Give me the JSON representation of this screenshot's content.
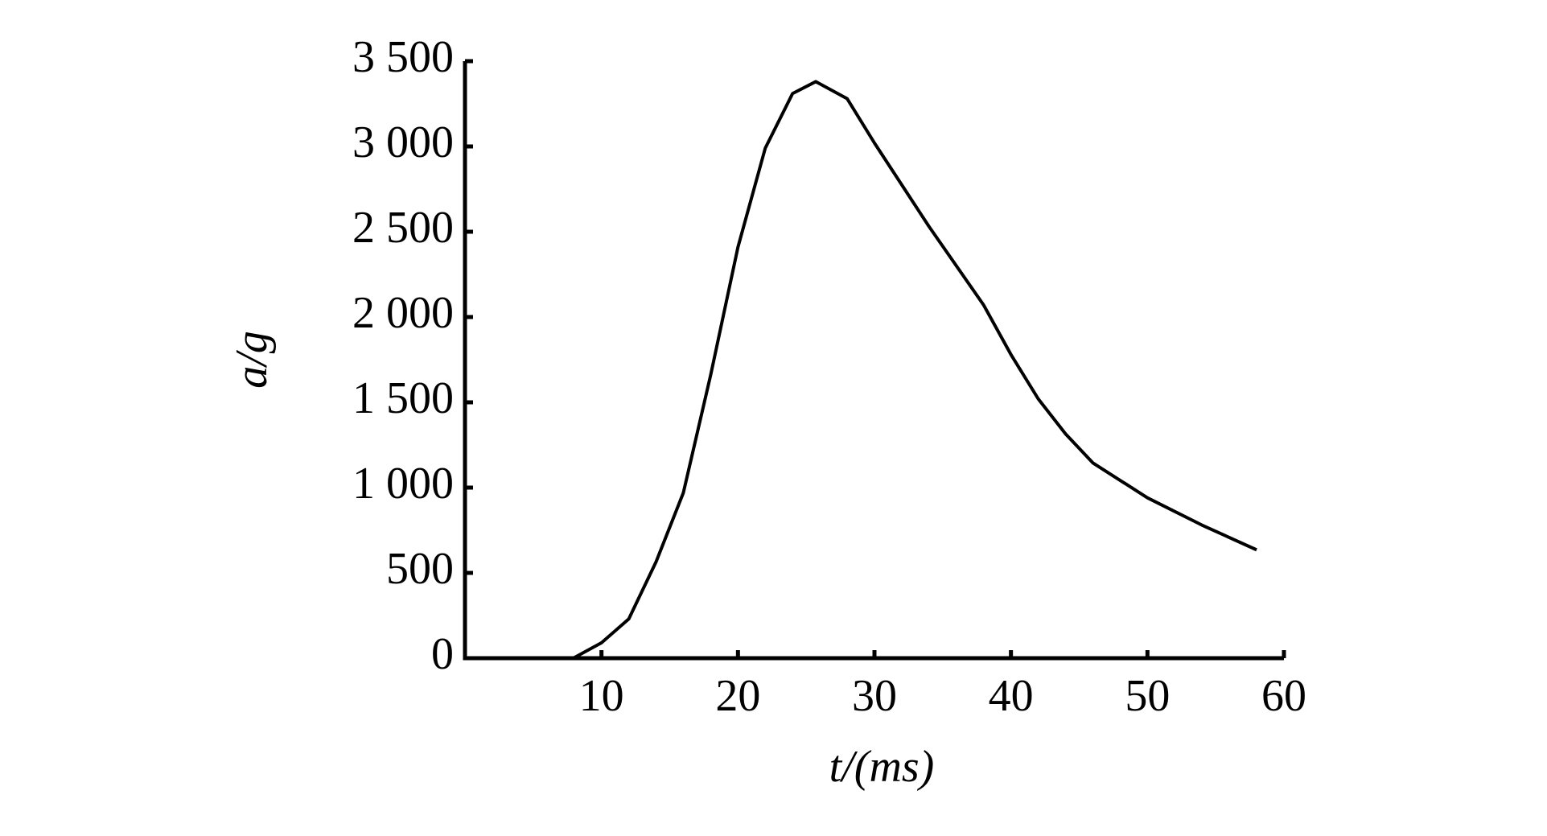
{
  "chart_data": {
    "type": "line",
    "x_label": "t/(ms)",
    "y_label": "a/g",
    "x": [
      0,
      5,
      7.5,
      8,
      10,
      12,
      14,
      16,
      18,
      20,
      22,
      24,
      25.7,
      28,
      30,
      34,
      38,
      40,
      42,
      44,
      46,
      50,
      54,
      58
    ],
    "series": [
      {
        "name": "a",
        "color": "#000000",
        "values": [
          0,
          0,
          0,
          3,
          90,
          230,
          565,
          970,
          1660,
          2410,
          2990,
          3310,
          3380,
          3280,
          3020,
          2530,
          2070,
          1780,
          1520,
          1315,
          1145,
          940,
          780,
          635
        ]
      }
    ],
    "xlim": [
      0,
      60
    ],
    "xticks": [
      10,
      20,
      30,
      40,
      50,
      60
    ],
    "ylim": [
      0,
      3500
    ],
    "yticks": [
      0,
      500,
      {
        "value": 1000,
        "label": "1 000"
      },
      {
        "value": 1500,
        "label": "1 500"
      },
      {
        "value": 2000,
        "label": "2 000"
      },
      {
        "value": 2500,
        "label": "2 500"
      },
      {
        "value": 3000,
        "label": "3 000"
      },
      {
        "value": 3500,
        "label": "3 500"
      }
    ],
    "grid": false
  }
}
